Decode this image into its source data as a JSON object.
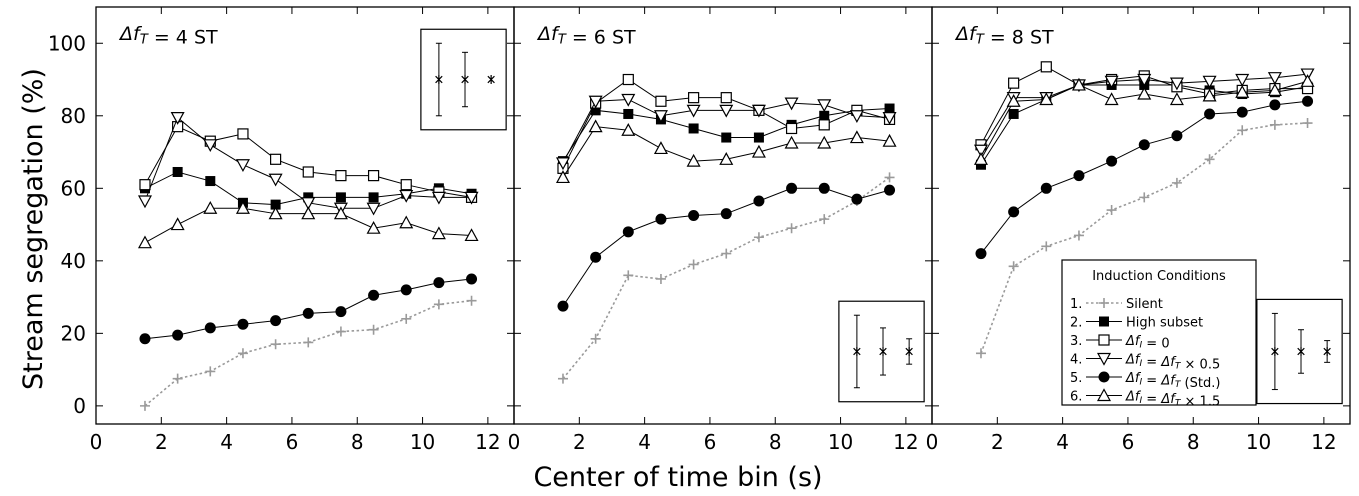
{
  "chart_data": {
    "type": "line",
    "x_label": "Center of time bin (s)",
    "y_label": "Stream segregation (%)",
    "xlim": [
      0,
      12.8
    ],
    "ylim": [
      -5,
      110
    ],
    "x_ticks": [
      0,
      2,
      4,
      6,
      8,
      10,
      12
    ],
    "y_ticks": [
      0,
      20,
      40,
      60,
      80,
      100
    ],
    "x": [
      1.5,
      2.5,
      3.5,
      4.5,
      5.5,
      6.5,
      7.5,
      8.5,
      9.5,
      10.5,
      11.5
    ],
    "legend": {
      "title": "Induction Conditions",
      "position": "bottom-right of third panel",
      "entries": [
        {
          "num": "1.",
          "label": "Silent"
        },
        {
          "num": "2.",
          "label": "High subset"
        },
        {
          "num": "3.",
          "label": "Δf_I = 0"
        },
        {
          "num": "4.",
          "label": "Δf_I = Δf_T × 0.5"
        },
        {
          "num": "5.",
          "label": "Δf_I = Δf_T (Std.)"
        },
        {
          "num": "6.",
          "label": "Δf_I = Δf_T × 1.5"
        }
      ]
    },
    "panels": [
      {
        "title": "Δf_T = 4 ST",
        "series": [
          {
            "id": "silent",
            "values": [
              0,
              7.5,
              9.5,
              14.5,
              17,
              17.5,
              20.5,
              21,
              24,
              28,
              29
            ]
          },
          {
            "id": "high",
            "values": [
              60,
              64.5,
              62,
              56,
              55.5,
              57.5,
              57.5,
              57.5,
              58.5,
              60,
              58.5
            ]
          },
          {
            "id": "zero",
            "values": [
              61,
              77,
              73,
              75,
              68,
              64.5,
              63.5,
              63.5,
              61,
              59,
              57.5
            ]
          },
          {
            "id": "half",
            "values": [
              56.5,
              79.5,
              72,
              66.5,
              62.5,
              56,
              54.5,
              54.5,
              58,
              57.5,
              57.5
            ]
          },
          {
            "id": "std",
            "values": [
              18.5,
              19.5,
              21.5,
              22.5,
              23.5,
              25.5,
              26,
              30.5,
              32,
              34,
              35
            ]
          },
          {
            "id": "onehalf",
            "values": [
              45,
              50,
              54.5,
              54.5,
              53,
              53,
              53,
              49,
              50.5,
              47.5,
              47
            ]
          }
        ],
        "error_bars": [
          {
            "x": 10.5,
            "center": 90,
            "low": 80,
            "high": 100
          },
          {
            "x": 11.3,
            "center": 90,
            "low": 82.5,
            "high": 97.5
          },
          {
            "x": 12.1,
            "center": 90,
            "low": 90,
            "high": 90
          }
        ]
      },
      {
        "title": "Δf_T = 6 ST",
        "series": [
          {
            "id": "silent",
            "values": [
              7.5,
              18.5,
              36,
              35,
              39,
              42,
              46.5,
              49,
              51.5,
              56.5,
              63
            ]
          },
          {
            "id": "high",
            "values": [
              67.5,
              81.5,
              80.5,
              79,
              76.5,
              74,
              74,
              77.5,
              80,
              81.5,
              82
            ]
          },
          {
            "id": "zero",
            "values": [
              65.5,
              83.5,
              90,
              84,
              85,
              85,
              81.5,
              76.5,
              77.5,
              81.5,
              79
            ]
          },
          {
            "id": "half",
            "values": [
              67,
              84,
              84.5,
              80,
              81.5,
              81.5,
              81.5,
              83.5,
              83,
              80,
              79.5
            ]
          },
          {
            "id": "std",
            "values": [
              27.5,
              41,
              48,
              51.5,
              52.5,
              53,
              56.5,
              60,
              60,
              57,
              59.5
            ]
          },
          {
            "id": "onehalf",
            "values": [
              63,
              77,
              76,
              71,
              67.5,
              68,
              70,
              72.5,
              72.5,
              74,
              73
            ]
          }
        ],
        "error_bars": [
          {
            "x": 10.5,
            "center": 15,
            "low": 5,
            "high": 25
          },
          {
            "x": 11.3,
            "center": 15,
            "low": 8.5,
            "high": 21.5
          },
          {
            "x": 12.1,
            "center": 15,
            "low": 11.5,
            "high": 18.5
          }
        ]
      },
      {
        "title": "Δf_T = 8 ST",
        "series": [
          {
            "id": "silent",
            "values": [
              14.5,
              38.5,
              44,
              47,
              54,
              57.5,
              61.5,
              68,
              76,
              77.5,
              78
            ]
          },
          {
            "id": "high",
            "values": [
              66.5,
              80.5,
              84.5,
              88.5,
              88.5,
              88.5,
              88.5,
              87,
              86,
              86.5,
              88
            ]
          },
          {
            "id": "zero",
            "values": [
              72,
              89,
              93.5,
              88.5,
              90,
              91,
              88,
              86,
              87,
              87.5,
              87.5
            ]
          },
          {
            "id": "half",
            "values": [
              70.5,
              85,
              85,
              88.5,
              89.5,
              90,
              89,
              89.5,
              90,
              90.5,
              91.5
            ]
          },
          {
            "id": "std",
            "values": [
              42,
              53.5,
              60,
              63.5,
              67.5,
              72,
              74.5,
              80.5,
              81,
              83,
              84
            ]
          },
          {
            "id": "onehalf",
            "values": [
              68,
              84,
              84.5,
              88.5,
              84.5,
              86,
              84.5,
              85.5,
              86.5,
              87,
              89.5
            ]
          }
        ],
        "error_bars": [
          {
            "x": 10.5,
            "center": 15,
            "low": 4.5,
            "high": 25.5
          },
          {
            "x": 11.3,
            "center": 15,
            "low": 9,
            "high": 21
          },
          {
            "x": 12.1,
            "center": 15,
            "low": 12,
            "high": 18
          }
        ]
      }
    ]
  }
}
